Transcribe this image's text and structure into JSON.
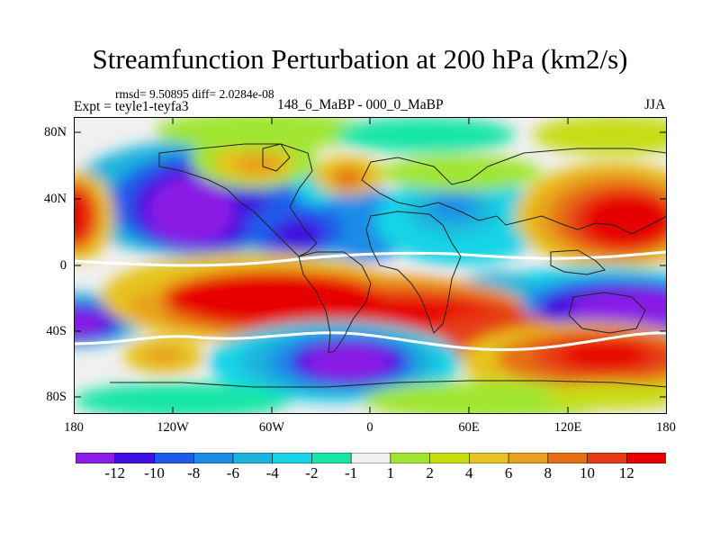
{
  "title": "Streamfunction Perturbation at 200 hPa (km2/s)",
  "stats": "rmsd= 9.50895 diff= 2.0284e-08",
  "expt": "Expt = teyle1-teyfa3",
  "period": "148_6_MaBP - 000_0_MaBP",
  "season": "JJA",
  "lat_labels": [
    "80N",
    "40N",
    "0",
    "40S",
    "80S"
  ],
  "lon_labels": [
    "180",
    "120W",
    "60W",
    "0",
    "60E",
    "120E",
    "180"
  ],
  "colorbar": {
    "colors": [
      "#8a1ee6",
      "#3f10e0",
      "#1e5bea",
      "#1a8ce8",
      "#1ab4dc",
      "#18d4e6",
      "#19e6a6",
      "#f0f0f0",
      "#a0e632",
      "#c8dc14",
      "#e6c31e",
      "#e8a01e",
      "#e66e14",
      "#e63c14",
      "#e60000"
    ],
    "labels": [
      "-12",
      "-10",
      "-8",
      "-6",
      "-4",
      "-2",
      "-1",
      "1",
      "2",
      "4",
      "6",
      "8",
      "10",
      "12"
    ]
  }
}
